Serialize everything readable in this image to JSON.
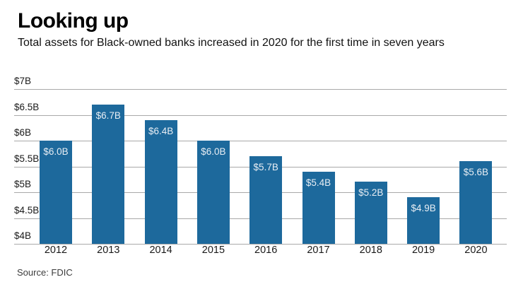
{
  "header": {
    "title": "Looking up",
    "subtitle": "Total assets for Black-owned banks increased in 2020 for the first time in seven years"
  },
  "chart_data": {
    "type": "bar",
    "categories": [
      "2012",
      "2013",
      "2014",
      "2015",
      "2016",
      "2017",
      "2018",
      "2019",
      "2020"
    ],
    "values": [
      6.0,
      6.7,
      6.4,
      6.0,
      5.7,
      5.4,
      5.2,
      4.9,
      5.6
    ],
    "bar_labels": [
      "$6.0B",
      "$6.7B",
      "$6.4B",
      "$6.0B",
      "$5.7B",
      "$5.4B",
      "$5.2B",
      "$4.9B",
      "$5.6B"
    ],
    "y_ticks": [
      {
        "value": 7.0,
        "label": "$7B"
      },
      {
        "value": 6.5,
        "label": "$6.5B"
      },
      {
        "value": 6.0,
        "label": "$6B"
      },
      {
        "value": 5.5,
        "label": "$5.5B"
      },
      {
        "value": 5.0,
        "label": "$5B"
      },
      {
        "value": 4.5,
        "label": "$4.5B"
      },
      {
        "value": 4.0,
        "label": "$4B"
      }
    ],
    "ylim": [
      4.0,
      7.0
    ],
    "xlabel": "",
    "ylabel": "",
    "grid": true,
    "legend": false,
    "bar_color": "#1d699c",
    "bar_label_color": "#e8eef4",
    "gridline_color": "#a9a9a9"
  },
  "footer": {
    "source": "Source: FDIC"
  }
}
